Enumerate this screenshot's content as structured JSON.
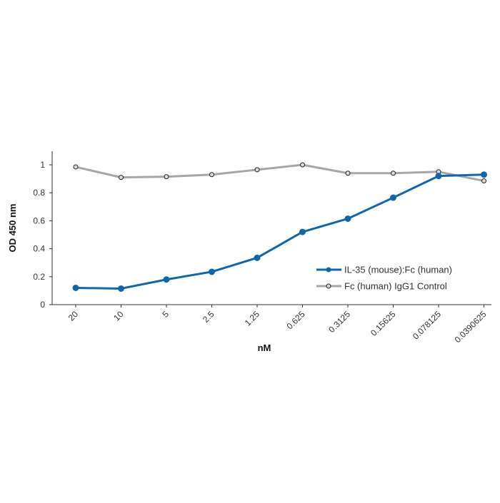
{
  "chart_data": {
    "type": "line",
    "title": "",
    "xlabel": "nM",
    "ylabel": "OD 450 nm",
    "categories": [
      "20",
      "10",
      "5",
      "2.5",
      "1.25",
      "0.625",
      "0.3125",
      "0.15625",
      "0.078125",
      "0.0390625"
    ],
    "ylim": [
      0,
      1
    ],
    "yticks": [
      "0",
      "0.2",
      "0.4",
      "0.6",
      "0.8",
      "1"
    ],
    "grid": false,
    "legend_position": "right",
    "series": [
      {
        "name": "IL-35 (mouse):Fc (human)",
        "color": "#1266a8",
        "marker": "filled-circle",
        "values": [
          0.12,
          0.115,
          0.18,
          0.235,
          0.335,
          0.52,
          0.615,
          0.765,
          0.92,
          0.93
        ]
      },
      {
        "name": "Fc (human) IgG1 Control",
        "color": "#a6a6a6",
        "marker": "open-circle",
        "values": [
          0.985,
          0.91,
          0.915,
          0.93,
          0.965,
          1.0,
          0.94,
          0.94,
          0.95,
          0.885
        ]
      }
    ]
  }
}
